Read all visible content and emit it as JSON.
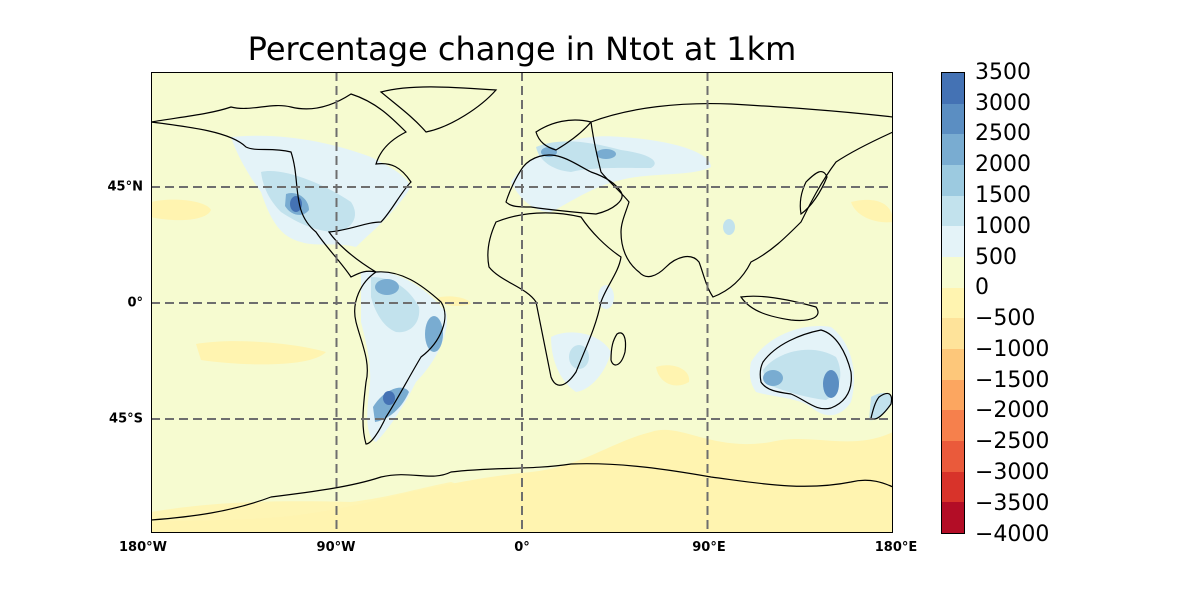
{
  "title": "Percentage change in Ntot at 1km",
  "lon_labels": [
    "180°W",
    "90°W",
    "0°",
    "90°E",
    "180°E"
  ],
  "lat_labels": [
    "45°N",
    "0°",
    "45°S"
  ],
  "colorbar": {
    "labels": [
      "3500",
      "3000",
      "2500",
      "2000",
      "1500",
      "1000",
      "500",
      "0",
      "−500",
      "−1000",
      "−1500",
      "−2000",
      "−2500",
      "−3000",
      "−3500",
      "−4000"
    ],
    "colors_top_to_bottom": [
      "#4472b4",
      "#5b8ec2",
      "#79acd1",
      "#9ccae0",
      "#c2e2ed",
      "#e4f3f8",
      "#f6fbd0",
      "#fff4b0",
      "#fee39a",
      "#fdc77a",
      "#fca660",
      "#f6804c",
      "#ea5a3b",
      "#d8332a",
      "#b30d26"
    ]
  },
  "field_colors": {
    "background": "#f6fbd0",
    "neg_small": "#fff4b0",
    "pos_1": "#e4f3f8",
    "pos_2": "#c2e2ed",
    "pos_3": "#9ccae0",
    "pos_4": "#79acd1",
    "pos_5": "#5b8ec2",
    "pos_6": "#4472b4"
  }
}
